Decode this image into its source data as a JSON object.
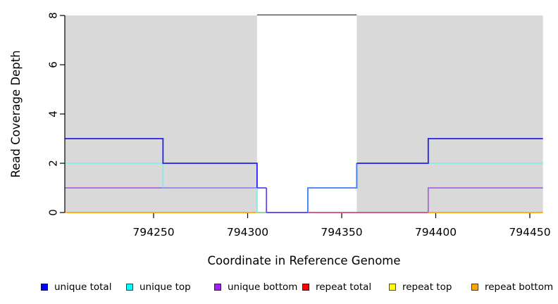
{
  "chart_data": {
    "type": "line",
    "subtype": "step-coverage",
    "title": "",
    "xlabel": "Coordinate in Reference Genome",
    "ylabel": "Read Coverage Depth",
    "xlim": [
      794203,
      794457
    ],
    "ylim": [
      0,
      8
    ],
    "x_ticks": [
      794250,
      794300,
      794350,
      794400,
      794450
    ],
    "y_ticks": [
      0,
      2,
      4,
      6,
      8
    ],
    "grid": false,
    "legend_position": "bottom",
    "shaded_region_color": "#d9d9d9",
    "shaded_regions": [
      {
        "from": 794203,
        "to": 794305
      },
      {
        "from": 794358,
        "to": 794457
      }
    ],
    "gap_region": {
      "from": 794305,
      "to": 794358,
      "top_line_color": "#4d4d4d"
    },
    "series": [
      {
        "name": "unique total",
        "color": "#0000FF",
        "steps": [
          [
            794203,
            3
          ],
          [
            794255,
            2
          ],
          [
            794305,
            1
          ],
          [
            794310,
            0
          ],
          [
            794332,
            1
          ],
          [
            794358,
            2
          ],
          [
            794396,
            3
          ],
          [
            794457,
            3
          ]
        ]
      },
      {
        "name": "unique top",
        "color": "#00FFFF",
        "steps": [
          [
            794203,
            2
          ],
          [
            794255,
            1
          ],
          [
            794305,
            0
          ],
          [
            794332,
            1
          ],
          [
            794358,
            2
          ],
          [
            794457,
            2
          ]
        ]
      },
      {
        "name": "unique bottom",
        "color": "#A020F0",
        "steps": [
          [
            794203,
            1
          ],
          [
            794310,
            0
          ],
          [
            794396,
            1
          ],
          [
            794457,
            1
          ]
        ]
      },
      {
        "name": "repeat total",
        "color": "#FF0000",
        "steps": [
          [
            794203,
            0
          ],
          [
            794457,
            0
          ]
        ]
      },
      {
        "name": "repeat top",
        "color": "#FFFF00",
        "steps": [
          [
            794203,
            0
          ],
          [
            794457,
            0
          ]
        ]
      },
      {
        "name": "repeat bottom",
        "color": "#FFA500",
        "steps": [
          [
            794203,
            0
          ],
          [
            794457,
            0
          ]
        ]
      }
    ],
    "render_segments": [
      {
        "id": "baseline-orange-left",
        "color": "#FFA500",
        "pts": [
          [
            794203,
            0
          ],
          [
            794305,
            0
          ]
        ]
      },
      {
        "id": "baseline-green-blend",
        "color": "#8FCC99",
        "pts": [
          [
            794305,
            0
          ],
          [
            794310,
            0
          ]
        ]
      },
      {
        "id": "baseline-blueviolet-blend",
        "color": "#4B3BE4",
        "pts": [
          [
            794310,
            0
          ],
          [
            794332,
            0
          ]
        ]
      },
      {
        "id": "baseline-crimson-blend",
        "color": "#CE4877",
        "pts": [
          [
            794332,
            0
          ],
          [
            794396,
            0
          ]
        ]
      },
      {
        "id": "baseline-orange-right",
        "color": "#FFA500",
        "pts": [
          [
            794396,
            0
          ],
          [
            794457,
            0
          ]
        ]
      },
      {
        "id": "purple-left",
        "color": "#A766D9",
        "pts": [
          [
            794203,
            1
          ],
          [
            794255,
            1
          ]
        ]
      },
      {
        "id": "cyan-left",
        "color": "#86E9ED",
        "pts": [
          [
            794203,
            2
          ],
          [
            794255,
            2
          ],
          [
            794255,
            1
          ]
        ]
      },
      {
        "id": "periwinkle-blend",
        "color": "#8F86E8",
        "pts": [
          [
            794255,
            1
          ],
          [
            794305,
            1
          ]
        ]
      },
      {
        "id": "cyan-drop",
        "color": "#86E9ED",
        "pts": [
          [
            794305,
            1
          ],
          [
            794305,
            0
          ]
        ]
      },
      {
        "id": "blue-left",
        "color": "#2222EB",
        "pts": [
          [
            794203,
            3
          ],
          [
            794255,
            3
          ],
          [
            794255,
            2
          ],
          [
            794305,
            2
          ],
          [
            794305,
            1
          ]
        ]
      },
      {
        "id": "blueviolet-step",
        "color": "#5A49EC",
        "pts": [
          [
            794305,
            1
          ],
          [
            794310,
            1
          ]
        ]
      },
      {
        "id": "violet-drop",
        "color": "#6B45E6",
        "pts": [
          [
            794310,
            1
          ],
          [
            794310,
            0
          ]
        ]
      },
      {
        "id": "cyan-right",
        "color": "#86E9ED",
        "pts": [
          [
            794358,
            2
          ],
          [
            794457,
            2
          ]
        ]
      },
      {
        "id": "purple-right",
        "color": "#A766D9",
        "pts": [
          [
            794396,
            0
          ],
          [
            794396,
            1
          ],
          [
            794457,
            1
          ]
        ]
      },
      {
        "id": "dodger-gap",
        "color": "#3D7DF0",
        "pts": [
          [
            794332,
            0
          ],
          [
            794332,
            1
          ],
          [
            794358,
            1
          ],
          [
            794358,
            2
          ]
        ]
      },
      {
        "id": "blue-right",
        "color": "#2222EB",
        "pts": [
          [
            794358,
            2
          ],
          [
            794396,
            2
          ],
          [
            794396,
            3
          ],
          [
            794457,
            3
          ]
        ]
      }
    ]
  },
  "legend": {
    "items": [
      {
        "label": "unique total",
        "color": "#0000FF"
      },
      {
        "label": "unique top",
        "color": "#00FFFF"
      },
      {
        "label": "unique bottom",
        "color": "#A020F0"
      },
      {
        "label": "repeat total",
        "color": "#FF0000"
      },
      {
        "label": "repeat top",
        "color": "#FFFF00"
      },
      {
        "label": "repeat bottom",
        "color": "#FFA500"
      }
    ]
  }
}
